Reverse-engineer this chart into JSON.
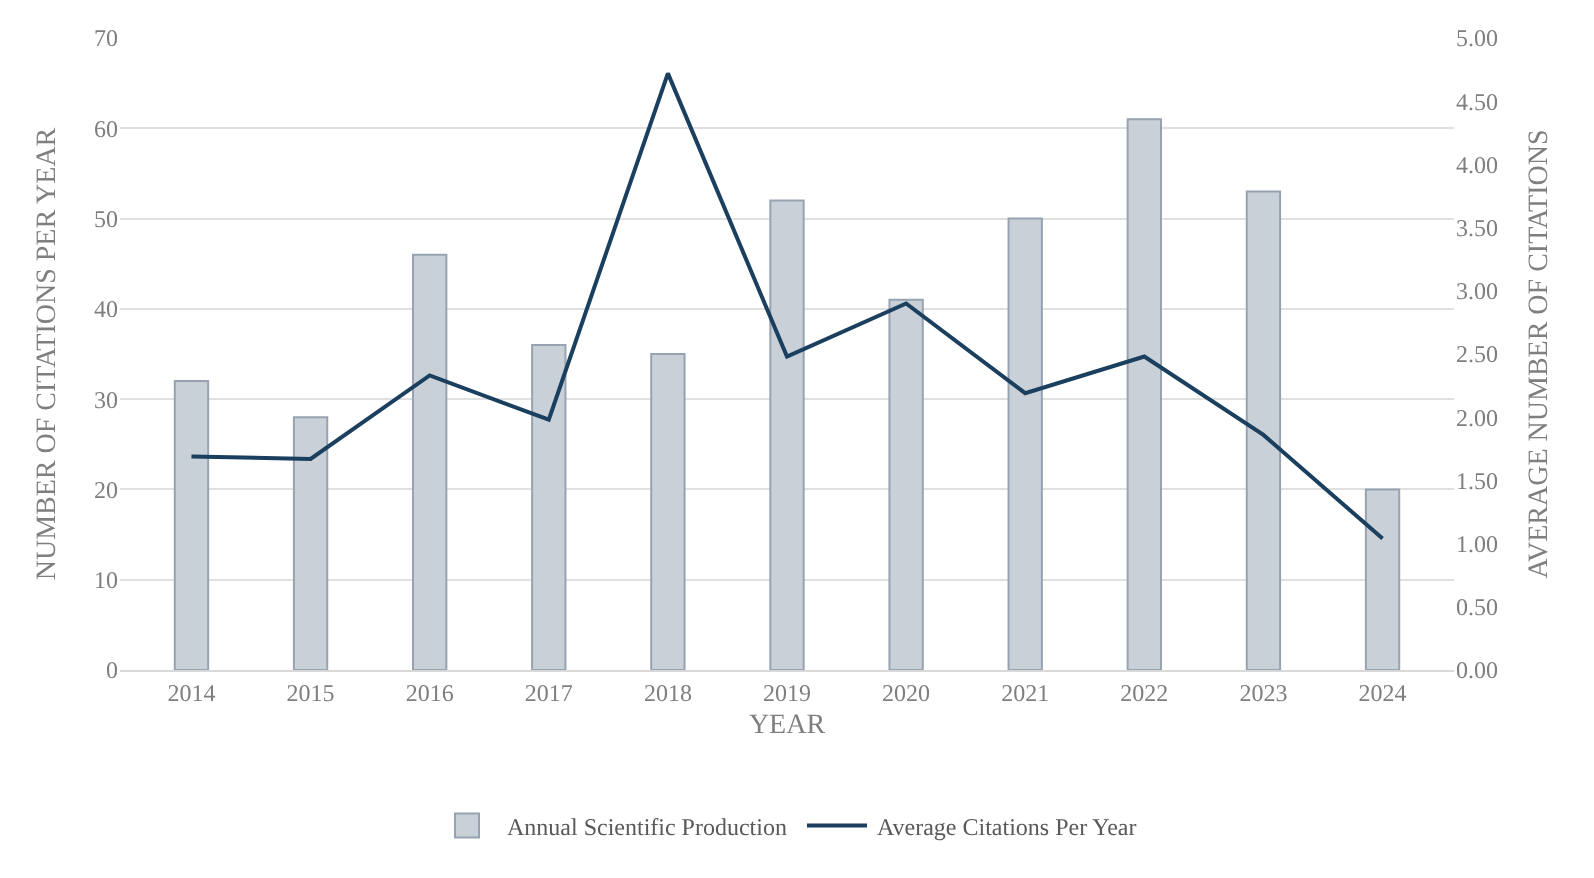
{
  "chart_data": {
    "type": "bar",
    "xlabel": "YEAR",
    "ylabel": "NUMBER OF CITATIONS PER YEAR",
    "y2label": "AVERAGE NUMBER OF CITATIONS",
    "categories": [
      "2014",
      "2015",
      "2016",
      "2017",
      "2018",
      "2019",
      "2020",
      "2021",
      "2022",
      "2023",
      "2024"
    ],
    "series": [
      {
        "name": "Annual Scientific Production",
        "color": "#c9d0d8",
        "values": [
          32,
          28,
          46,
          36,
          35,
          52,
          41,
          50,
          61,
          53,
          20
        ]
      },
      {
        "name": "Average Citations Per Year",
        "type": "line",
        "axis": "y2",
        "color": "#1b3f5e",
        "values": [
          1.69,
          1.67,
          2.33,
          1.98,
          4.72,
          2.48,
          2.9,
          2.19,
          2.48,
          1.86,
          1.04
        ]
      }
    ],
    "ylim": [
      0,
      70
    ],
    "yticks": [
      0,
      10,
      20,
      30,
      40,
      50,
      60,
      70
    ],
    "y2lim": [
      0,
      5
    ],
    "y2ticks": [
      {
        "value": 0,
        "label": "0.00"
      },
      {
        "value": 0.5,
        "label": "0.50"
      },
      {
        "value": 1,
        "label": "1.00"
      },
      {
        "value": 1.5,
        "label": "1.50"
      },
      {
        "value": 2,
        "label": "2.00"
      },
      {
        "value": 2.5,
        "label": "2.50"
      },
      {
        "value": 3,
        "label": "3.00"
      },
      {
        "value": 3.5,
        "label": "3.50"
      },
      {
        "value": 4,
        "label": "4.00"
      },
      {
        "value": 4.5,
        "label": "4.50"
      },
      {
        "value": 5,
        "label": "5.00"
      }
    ],
    "grid": "y",
    "legend": "bottom",
    "marker": "none",
    "line_style": "solid"
  }
}
